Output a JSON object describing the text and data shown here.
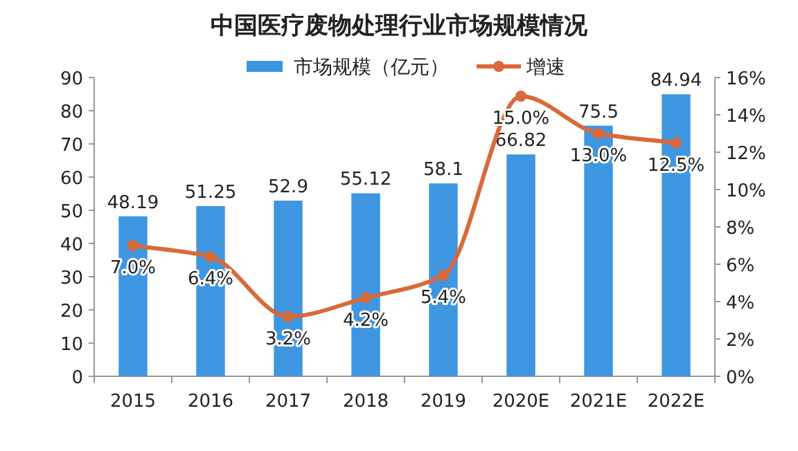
{
  "chart_data": {
    "type": "bar",
    "title": "中国医疗废物处理行业市场规模情况",
    "categories": [
      "2015",
      "2016",
      "2017",
      "2018",
      "2019",
      "2020E",
      "2021E",
      "2022E"
    ],
    "series": [
      {
        "name": "市场规模（亿元）",
        "color": "#3f96e0",
        "values": [
          48.19,
          51.25,
          52.9,
          55.12,
          58.1,
          66.82,
          75.5,
          84.94
        ],
        "value_labels": [
          "48.19",
          "51.25",
          "52.9",
          "55.12",
          "58.1",
          "66.82",
          "75.5",
          "84.94"
        ]
      },
      {
        "name": "增速",
        "type": "line",
        "axis": "y2",
        "color": "#d9693a",
        "marker": "circle",
        "values": [
          7.0,
          6.4,
          3.2,
          4.2,
          5.4,
          15.0,
          13.0,
          12.5
        ],
        "value_labels": [
          "7.0%",
          "6.4%",
          "3.2%",
          "4.2%",
          "5.4%",
          "15.0%",
          "13.0%",
          "12.5%"
        ]
      }
    ],
    "ylim": [
      0,
      90
    ],
    "yticks": [
      0,
      10,
      20,
      30,
      40,
      50,
      60,
      70,
      80,
      90
    ],
    "y2lim": [
      0,
      16
    ],
    "y2ticks": [
      {
        "value": 0,
        "label": "0%"
      },
      {
        "value": 2,
        "label": "2%"
      },
      {
        "value": 4,
        "label": "4%"
      },
      {
        "value": 6,
        "label": "6%"
      },
      {
        "value": 8,
        "label": "8%"
      },
      {
        "value": 10,
        "label": "10%"
      },
      {
        "value": 12,
        "label": "12%"
      },
      {
        "value": 14,
        "label": "14%"
      },
      {
        "value": 16,
        "label": "16%"
      }
    ],
    "grid": false,
    "legend": "top"
  }
}
